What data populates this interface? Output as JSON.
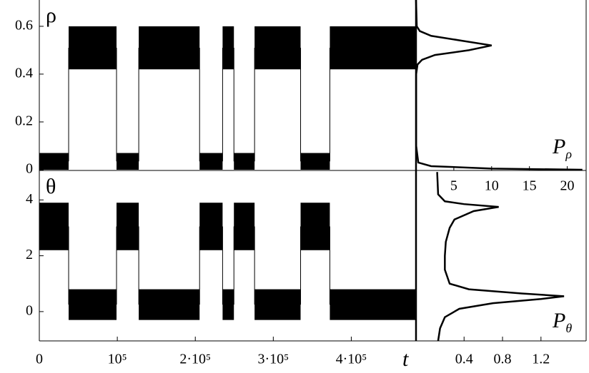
{
  "chart_data": [
    {
      "type": "band",
      "ylabel": "ρ",
      "bins": [
        0,
        37600,
        99000,
        127500,
        205500,
        235000,
        249500,
        276000,
        335000,
        372500,
        483000
      ],
      "lower": [
        0,
        0.42,
        0,
        0.42,
        0,
        0.42,
        0,
        0.42,
        0,
        0.42
      ],
      "upper": [
        0.07,
        0.6,
        0.07,
        0.6,
        0.07,
        0.6,
        0.07,
        0.6,
        0.07,
        0.6
      ],
      "xlim": [
        0,
        483000
      ],
      "ylim": [
        0,
        0.71
      ],
      "yticks": [
        0,
        0.2,
        0.4,
        0.6
      ],
      "color": "#000000"
    },
    {
      "type": "density",
      "xlabel": "P",
      "xlabel_sub": "ρ",
      "y": [
        0.71,
        0.6,
        0.58,
        0.56,
        0.54,
        0.52,
        0.5,
        0.48,
        0.46,
        0.44,
        0.4,
        0.1,
        0.03,
        0.015,
        0.005,
        0
      ],
      "values": [
        0,
        0.1,
        0.5,
        2,
        6,
        10,
        7,
        2.5,
        0.8,
        0.2,
        0.02,
        0.02,
        0.3,
        2,
        10,
        22
      ],
      "xlim": [
        0,
        22.5
      ],
      "ylim": [
        0,
        0.71
      ],
      "xticks": [
        5,
        10,
        15,
        20
      ],
      "color": "#000000"
    },
    {
      "type": "band",
      "ylabel": "θ",
      "xlabel": "t",
      "bins": [
        0,
        37600,
        99000,
        127500,
        205500,
        235000,
        249500,
        276000,
        335000,
        372500,
        483000
      ],
      "lower": [
        2.2,
        -0.3,
        2.2,
        -0.3,
        2.2,
        -0.3,
        2.2,
        -0.3,
        2.2,
        -0.3
      ],
      "upper": [
        3.9,
        0.8,
        3.9,
        0.8,
        3.9,
        0.8,
        3.9,
        0.8,
        3.9,
        0.8
      ],
      "xlim": [
        0,
        483000
      ],
      "ylim": [
        -1.05,
        5.03
      ],
      "yticks": [
        0,
        2,
        4
      ],
      "xticks": [
        0,
        {
          "value": 100000,
          "label": "10⁵"
        },
        {
          "value": 200000,
          "label": "2·10⁵"
        },
        {
          "value": 300000,
          "label": "3·10⁵"
        },
        {
          "value": 400000,
          "label": "4·10⁵"
        }
      ],
      "color": "#000000"
    },
    {
      "type": "density",
      "xlabel": "P",
      "xlabel_sub": "θ",
      "y": [
        5,
        4.2,
        3.95,
        3.85,
        3.75,
        3.6,
        3.3,
        3,
        2.5,
        2,
        1.5,
        1,
        0.8,
        0.65,
        0.55,
        0.45,
        0.3,
        0.1,
        -0.2,
        -0.6,
        -1.05
      ],
      "values": [
        0.12,
        0.13,
        0.2,
        0.4,
        0.76,
        0.5,
        0.3,
        0.25,
        0.21,
        0.2,
        0.2,
        0.25,
        0.45,
        1,
        1.44,
        1.2,
        0.7,
        0.35,
        0.2,
        0.15,
        0.13
      ],
      "xlim": [
        -0.1,
        1.67
      ],
      "ylim": [
        -1.05,
        5.03
      ],
      "xticks": [
        0.4,
        0.8,
        1.2
      ],
      "color": "#000000"
    }
  ]
}
